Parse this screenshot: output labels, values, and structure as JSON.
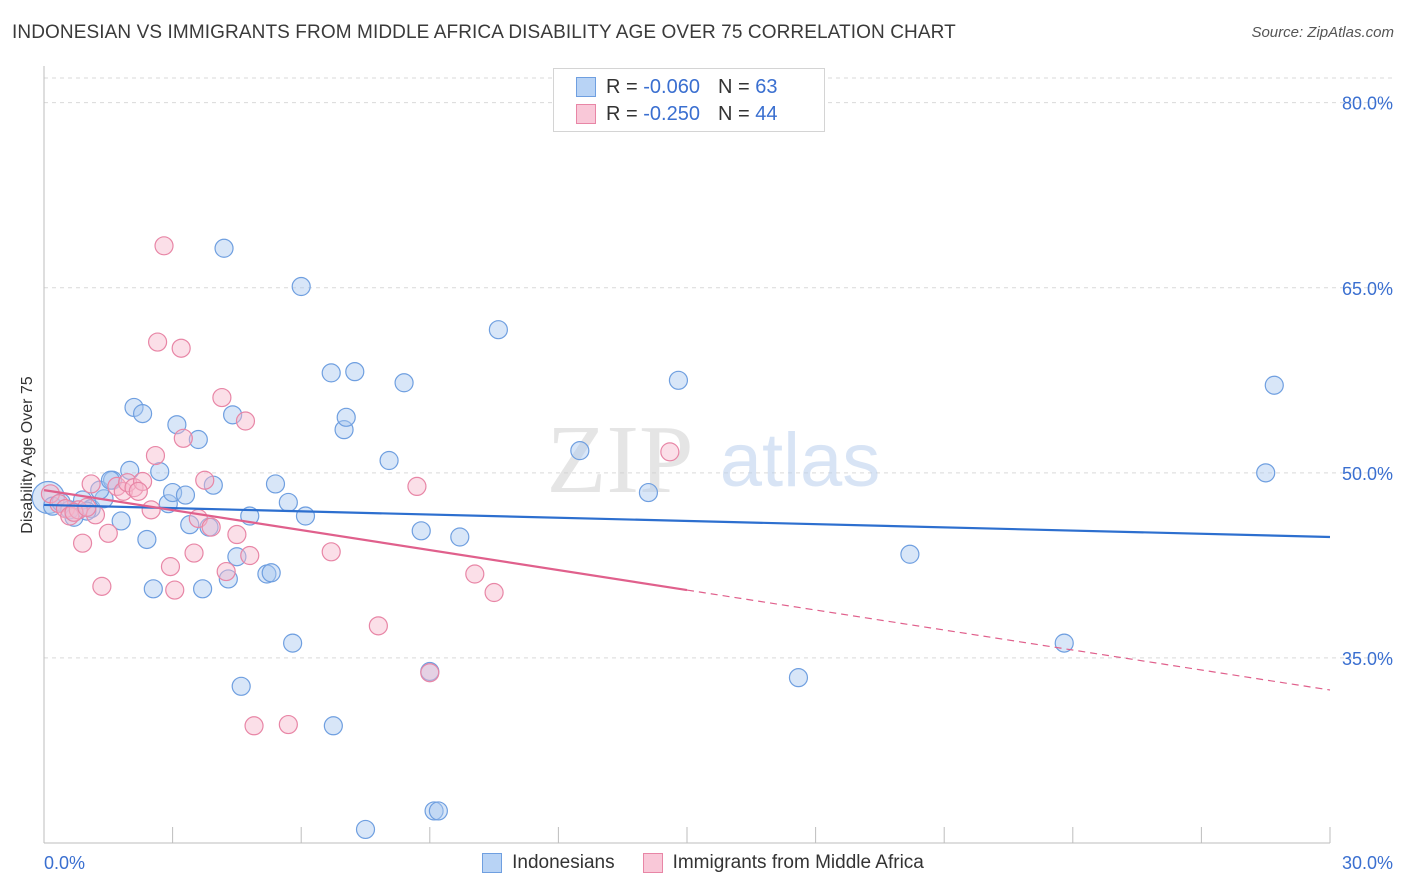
{
  "title": "INDONESIAN VS IMMIGRANTS FROM MIDDLE AFRICA DISABILITY AGE OVER 75 CORRELATION CHART",
  "source": "Source: ZipAtlas.com",
  "watermark": {
    "zip": "ZIP",
    "atlas": "atlas"
  },
  "legend": {
    "row1": {
      "r_label": "R =",
      "r_value": "-0.060",
      "n_label": "N =",
      "n_value": "63"
    },
    "row2": {
      "r_label": "R =",
      "r_value": "-0.250",
      "n_label": "N =",
      "n_value": "44"
    }
  },
  "bottom_legend": {
    "series1": "Indonesians",
    "series2": "Immigrants from Middle Africa"
  },
  "colors": {
    "blue_fill": "#a9c8f0",
    "blue_stroke": "#6f9fe0",
    "blue_line": "#2d6fcf",
    "pink_fill": "#f6b7cb",
    "pink_stroke": "#e886a6",
    "pink_line": "#e0608c",
    "tick_label": "#3a6fd0",
    "grid": "#d9d9d9"
  },
  "chart_data": {
    "type": "scatter",
    "title": "INDONESIAN VS IMMIGRANTS FROM MIDDLE AFRICA DISABILITY AGE OVER 75 CORRELATION CHART",
    "xlabel": "",
    "ylabel": "Disability Age Over 75",
    "xlim": [
      0,
      30
    ],
    "ylim": [
      20,
      82
    ],
    "x_tick_labels": [
      "0.0%",
      "30.0%"
    ],
    "y_ticks": [
      35,
      50,
      65,
      80
    ],
    "y_tick_labels": [
      "35.0%",
      "50.0%",
      "65.0%",
      "80.0%"
    ],
    "series": [
      {
        "name": "Indonesians",
        "color": "blue",
        "r": -0.06,
        "n": 63,
        "trend": {
          "x": [
            0,
            30
          ],
          "y": [
            47.4,
            44.8
          ],
          "dashed_from": null
        },
        "points": [
          {
            "x": 0.1,
            "y": 48.0,
            "big": true
          },
          {
            "x": 0.2,
            "y": 47.3
          },
          {
            "x": 0.4,
            "y": 47.6
          },
          {
            "x": 0.6,
            "y": 47.0
          },
          {
            "x": 0.7,
            "y": 46.4
          },
          {
            "x": 0.9,
            "y": 47.8
          },
          {
            "x": 1.1,
            "y": 47.1
          },
          {
            "x": 1.4,
            "y": 47.9
          },
          {
            "x": 1.0,
            "y": 46.9
          },
          {
            "x": 1.3,
            "y": 48.6
          },
          {
            "x": 1.6,
            "y": 49.4
          },
          {
            "x": 1.8,
            "y": 46.1
          },
          {
            "x": 2.0,
            "y": 50.2
          },
          {
            "x": 2.1,
            "y": 55.3
          },
          {
            "x": 2.3,
            "y": 54.8
          },
          {
            "x": 2.4,
            "y": 44.6
          },
          {
            "x": 2.55,
            "y": 40.6
          },
          {
            "x": 2.7,
            "y": 50.1
          },
          {
            "x": 2.9,
            "y": 47.5
          },
          {
            "x": 3.0,
            "y": 48.4
          },
          {
            "x": 3.1,
            "y": 53.9
          },
          {
            "x": 3.3,
            "y": 48.2
          },
          {
            "x": 3.4,
            "y": 45.8
          },
          {
            "x": 3.6,
            "y": 52.7
          },
          {
            "x": 3.7,
            "y": 40.6
          },
          {
            "x": 3.85,
            "y": 45.6
          },
          {
            "x": 3.95,
            "y": 49.0
          },
          {
            "x": 4.2,
            "y": 68.2
          },
          {
            "x": 4.3,
            "y": 41.4
          },
          {
            "x": 4.4,
            "y": 54.7
          },
          {
            "x": 4.5,
            "y": 43.2
          },
          {
            "x": 4.6,
            "y": 32.7
          },
          {
            "x": 4.8,
            "y": 46.5
          },
          {
            "x": 5.2,
            "y": 41.8
          },
          {
            "x": 5.3,
            "y": 41.9
          },
          {
            "x": 5.4,
            "y": 49.1
          },
          {
            "x": 5.7,
            "y": 47.6
          },
          {
            "x": 5.8,
            "y": 36.2
          },
          {
            "x": 6.0,
            "y": 65.1
          },
          {
            "x": 6.1,
            "y": 46.5
          },
          {
            "x": 6.7,
            "y": 58.1
          },
          {
            "x": 6.75,
            "y": 29.5
          },
          {
            "x": 7.0,
            "y": 53.5
          },
          {
            "x": 7.05,
            "y": 54.5
          },
          {
            "x": 7.25,
            "y": 58.2
          },
          {
            "x": 7.5,
            "y": 21.1
          },
          {
            "x": 8.05,
            "y": 51.0
          },
          {
            "x": 8.4,
            "y": 57.3
          },
          {
            "x": 8.8,
            "y": 45.3
          },
          {
            "x": 9.0,
            "y": 33.9
          },
          {
            "x": 9.1,
            "y": 22.6
          },
          {
            "x": 9.2,
            "y": 22.6
          },
          {
            "x": 9.7,
            "y": 44.8
          },
          {
            "x": 10.6,
            "y": 61.6
          },
          {
            "x": 12.5,
            "y": 51.8
          },
          {
            "x": 14.1,
            "y": 48.4
          },
          {
            "x": 14.8,
            "y": 57.5
          },
          {
            "x": 17.6,
            "y": 33.4
          },
          {
            "x": 20.2,
            "y": 43.4
          },
          {
            "x": 23.8,
            "y": 36.2
          },
          {
            "x": 28.5,
            "y": 50.0
          },
          {
            "x": 28.7,
            "y": 57.1
          },
          {
            "x": 1.55,
            "y": 49.4
          }
        ]
      },
      {
        "name": "Immigrants from Middle Africa",
        "color": "pink",
        "r": -0.25,
        "n": 44,
        "trend": {
          "x": [
            0,
            30
          ],
          "y": [
            48.6,
            32.4
          ],
          "solid_until_x": 15.0
        },
        "points": [
          {
            "x": 0.15,
            "y": 48.3
          },
          {
            "x": 0.35,
            "y": 47.5
          },
          {
            "x": 0.5,
            "y": 47.1
          },
          {
            "x": 0.6,
            "y": 46.5
          },
          {
            "x": 0.8,
            "y": 47.0
          },
          {
            "x": 0.9,
            "y": 44.3
          },
          {
            "x": 1.1,
            "y": 49.1
          },
          {
            "x": 1.2,
            "y": 46.6
          },
          {
            "x": 1.35,
            "y": 40.8
          },
          {
            "x": 1.5,
            "y": 45.1
          },
          {
            "x": 1.7,
            "y": 48.9
          },
          {
            "x": 1.85,
            "y": 48.5
          },
          {
            "x": 1.95,
            "y": 49.2
          },
          {
            "x": 2.1,
            "y": 48.8
          },
          {
            "x": 2.3,
            "y": 49.3
          },
          {
            "x": 2.5,
            "y": 47.0
          },
          {
            "x": 2.6,
            "y": 51.4
          },
          {
            "x": 2.65,
            "y": 60.6
          },
          {
            "x": 2.8,
            "y": 68.4
          },
          {
            "x": 2.95,
            "y": 42.4
          },
          {
            "x": 3.05,
            "y": 40.5
          },
          {
            "x": 3.2,
            "y": 60.1
          },
          {
            "x": 3.25,
            "y": 52.8
          },
          {
            "x": 3.5,
            "y": 43.5
          },
          {
            "x": 3.6,
            "y": 46.3
          },
          {
            "x": 3.75,
            "y": 49.4
          },
          {
            "x": 3.9,
            "y": 45.6
          },
          {
            "x": 4.15,
            "y": 56.1
          },
          {
            "x": 4.25,
            "y": 42.0
          },
          {
            "x": 4.5,
            "y": 45.0
          },
          {
            "x": 4.7,
            "y": 54.2
          },
          {
            "x": 4.8,
            "y": 43.3
          },
          {
            "x": 4.9,
            "y": 29.5
          },
          {
            "x": 5.7,
            "y": 29.6
          },
          {
            "x": 6.7,
            "y": 43.6
          },
          {
            "x": 7.8,
            "y": 37.6
          },
          {
            "x": 8.7,
            "y": 48.9
          },
          {
            "x": 9.0,
            "y": 33.8
          },
          {
            "x": 10.05,
            "y": 41.8
          },
          {
            "x": 10.5,
            "y": 40.3
          },
          {
            "x": 14.6,
            "y": 51.7
          },
          {
            "x": 2.2,
            "y": 48.5
          },
          {
            "x": 0.7,
            "y": 46.8
          },
          {
            "x": 1.0,
            "y": 47.2
          }
        ]
      }
    ]
  }
}
